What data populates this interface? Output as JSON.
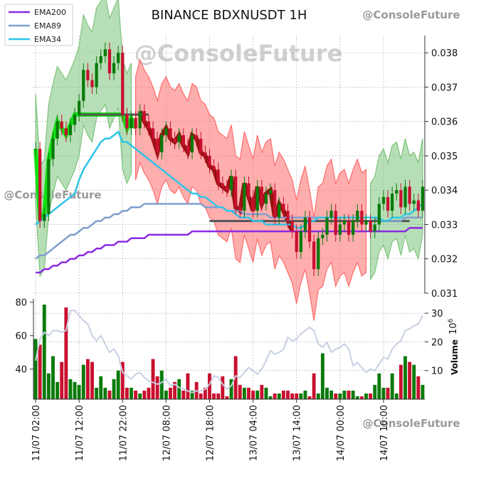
{
  "watermark": "@ConsoleFuture",
  "chart_data": {
    "type": "candlestick",
    "title": "BINANCE BDXNUSDT 1H",
    "legend": {
      "position": "top-left",
      "entries": [
        {
          "name": "EMA200",
          "color": "#8a2be2"
        },
        {
          "name": "EMA89",
          "color": "#7f9fcf"
        },
        {
          "name": "EMA34",
          "color": "#2ec4e6"
        }
      ]
    },
    "colors": {
      "up": "#0a7a0a",
      "down": "#c8102e",
      "cloud_up": "#7cc47c",
      "cloud_down": "#ff6b6b",
      "ribbon_green": "#00e000",
      "ribbon_red": "#8b0000",
      "volume_line": "#c7d0e3"
    },
    "x_tick_labels": [
      "11/07 02:00",
      "11/07 12:00",
      "11/07 22:00",
      "12/07 08:00",
      "12/07 18:00",
      "13/07 04:00",
      "13/07 14:00",
      "14/07 00:00",
      "14/07 10:00"
    ],
    "x_tick_index": [
      0,
      10,
      20,
      30,
      40,
      50,
      60,
      70,
      80
    ],
    "n_bars": 90,
    "price_axis": {
      "range": [
        0.031,
        0.0385
      ],
      "ticks": [
        "0.038",
        "0.037",
        "0.036",
        "0.035",
        "0.034",
        "0.033",
        "0.032",
        "0.031"
      ]
    },
    "volume_axis": {
      "label": "Volume",
      "multiplier": "10^6",
      "range": [
        0,
        35
      ],
      "ticks": [
        10,
        20,
        30
      ]
    },
    "left_axis": {
      "range": [
        22,
        82
      ],
      "ticks": [
        40,
        60,
        80
      ]
    },
    "ohlc_close": [
      0.0352,
      0.0331,
      0.0333,
      0.0349,
      0.0355,
      0.036,
      0.0358,
      0.0356,
      0.0359,
      0.0362,
      0.0366,
      0.0375,
      0.0372,
      0.037,
      0.0377,
      0.0379,
      0.0381,
      0.0374,
      0.0377,
      0.038,
      0.0362,
      0.0358,
      0.0361,
      0.0358,
      0.0363,
      0.036,
      0.0358,
      0.0355,
      0.0351,
      0.0356,
      0.0358,
      0.0355,
      0.0354,
      0.0356,
      0.0353,
      0.0351,
      0.0356,
      0.0355,
      0.0351,
      0.035,
      0.0347,
      0.0346,
      0.0342,
      0.0341,
      0.034,
      0.0344,
      0.0335,
      0.0334,
      0.0342,
      0.0338,
      0.0334,
      0.0341,
      0.0336,
      0.0339,
      0.034,
      0.0332,
      0.0336,
      0.0334,
      0.0331,
      0.0328,
      0.0322,
      0.0328,
      0.0332,
      0.0325,
      0.0317,
      0.0326,
      0.0327,
      0.0332,
      0.0334,
      0.0327,
      0.033,
      0.0331,
      0.0327,
      0.0331,
      0.0334,
      0.033,
      0.0331,
      0.0328,
      0.033,
      0.0336,
      0.0338,
      0.0334,
      0.0339,
      0.034,
      0.0335,
      0.0341,
      0.0336,
      0.0337,
      0.0334,
      0.0341
    ],
    "volume": [
      21,
      19,
      33,
      9,
      15,
      6,
      13,
      32,
      7,
      6,
      5,
      12,
      14,
      13,
      4,
      8,
      4,
      3,
      7,
      10,
      13,
      4,
      4,
      3,
      2,
      3,
      4,
      14,
      8,
      10,
      3,
      4,
      6,
      7,
      3,
      9,
      3,
      6,
      2,
      4,
      9,
      2,
      2,
      8,
      1,
      7,
      15,
      5,
      4,
      4,
      3,
      3,
      5,
      4,
      1,
      2,
      2,
      3,
      3,
      2,
      2,
      2,
      3,
      1,
      9,
      2,
      16,
      4,
      3,
      2,
      2,
      3,
      3,
      3,
      1,
      1,
      2,
      2,
      5,
      9,
      4,
      4,
      9,
      2,
      12,
      15,
      13,
      12,
      8,
      5
    ],
    "ema34": [
      0.033,
      0.0331,
      0.0332,
      0.0333,
      0.0334,
      0.0335,
      0.0336,
      0.0337,
      0.0338,
      0.0339,
      0.0343,
      0.0346,
      0.0348,
      0.035,
      0.0352,
      0.0354,
      0.0355,
      0.0355,
      0.0356,
      0.0357,
      0.0354,
      0.0354,
      0.0353,
      0.0352,
      0.0351,
      0.035,
      0.0349,
      0.0348,
      0.0347,
      0.0346,
      0.0345,
      0.0344,
      0.0343,
      0.0342,
      0.0341,
      0.034,
      0.0339,
      0.0339,
      0.0338,
      0.0338,
      0.0337,
      0.0336,
      0.0335,
      0.0335,
      0.0334,
      0.0334,
      0.0333,
      0.0332,
      0.0332,
      0.0332,
      0.0331,
      0.0331,
      0.0331,
      0.033,
      0.033,
      0.033,
      0.033,
      0.033,
      0.033,
      0.033,
      0.0329,
      0.0329,
      0.033,
      0.0331,
      0.0331,
      0.0332,
      0.0332,
      0.0332,
      0.0332,
      0.0332,
      0.0332,
      0.0332,
      0.0332,
      0.0332,
      0.0332,
      0.0332,
      0.0332,
      0.0332,
      0.0332,
      0.0332,
      0.0331,
      0.0331,
      0.0332,
      0.0332,
      0.0332,
      0.0333,
      0.0333,
      0.0334,
      0.0335,
      0.0336
    ],
    "ema89": [
      0.032,
      0.0321,
      0.0321,
      0.0322,
      0.0323,
      0.0324,
      0.0325,
      0.0326,
      0.0327,
      0.0327,
      0.0328,
      0.0329,
      0.0329,
      0.033,
      0.0331,
      0.0331,
      0.0332,
      0.0332,
      0.0333,
      0.0333,
      0.0334,
      0.0334,
      0.0335,
      0.0335,
      0.0335,
      0.0336,
      0.0336,
      0.0336,
      0.0336,
      0.0336,
      0.0336,
      0.0336,
      0.0336,
      0.0336,
      0.0336,
      0.0336,
      0.0336,
      0.0336,
      0.0336,
      0.0335,
      0.0335,
      0.0335,
      0.0335,
      0.0335,
      0.0334,
      0.0334,
      0.0334,
      0.0334,
      0.0333,
      0.0333,
      0.0333,
      0.0333,
      0.0333,
      0.0333,
      0.0332,
      0.0332,
      0.0332,
      0.0332,
      0.0332,
      0.0332,
      0.0332,
      0.0332,
      0.0332,
      0.0332,
      0.0332,
      0.0332,
      0.0332,
      0.0332,
      0.0332,
      0.0332,
      0.0332,
      0.0332,
      0.0332,
      0.0332,
      0.0332,
      0.0332,
      0.0332,
      0.0332,
      0.0332,
      0.0331,
      0.0331,
      0.0331,
      0.0331,
      0.0331,
      0.0331,
      0.0332,
      0.0332,
      0.0332,
      0.0332,
      0.0332
    ],
    "ema200": [
      0.0316,
      0.0316,
      0.0317,
      0.0317,
      0.0318,
      0.0318,
      0.0319,
      0.0319,
      0.032,
      0.032,
      0.0321,
      0.0321,
      0.0322,
      0.0322,
      0.0323,
      0.0323,
      0.0324,
      0.0324,
      0.0324,
      0.0325,
      0.0325,
      0.0325,
      0.0326,
      0.0326,
      0.0326,
      0.0326,
      0.0327,
      0.0327,
      0.0327,
      0.0327,
      0.0327,
      0.0327,
      0.0327,
      0.0327,
      0.0327,
      0.0327,
      0.0328,
      0.0328,
      0.0328,
      0.0328,
      0.0328,
      0.0328,
      0.0328,
      0.0328,
      0.0328,
      0.0328,
      0.0328,
      0.0328,
      0.0328,
      0.0328,
      0.0328,
      0.0328,
      0.0328,
      0.0328,
      0.0328,
      0.0328,
      0.0328,
      0.0328,
      0.0328,
      0.0328,
      0.0328,
      0.0328,
      0.0328,
      0.0328,
      0.0328,
      0.0328,
      0.0328,
      0.0328,
      0.0328,
      0.0328,
      0.0328,
      0.0328,
      0.0328,
      0.0328,
      0.0328,
      0.0328,
      0.0328,
      0.0328,
      0.0328,
      0.0328,
      0.0328,
      0.0328,
      0.0328,
      0.0328,
      0.0328,
      0.0328,
      0.0329,
      0.0329,
      0.0329,
      0.0329
    ],
    "rsi": [
      45,
      58,
      62,
      60,
      63,
      63,
      62,
      63,
      75,
      75,
      72,
      69,
      67,
      60,
      57,
      60,
      55,
      50,
      52,
      48,
      38,
      36,
      34,
      37,
      38,
      35,
      33,
      32,
      31,
      32,
      34,
      30,
      31,
      29,
      28,
      27,
      26,
      27,
      27,
      28,
      31,
      36,
      35,
      31,
      28,
      30,
      36,
      35,
      38,
      41,
      39,
      37,
      40,
      45,
      51,
      49,
      50,
      52,
      59,
      57,
      58,
      61,
      63,
      65,
      63,
      55,
      53,
      56,
      50,
      52,
      53,
      55,
      52,
      42,
      44,
      41,
      38,
      40,
      39,
      43,
      47,
      46,
      52,
      55,
      57,
      63,
      64,
      66,
      67,
      72
    ]
  }
}
